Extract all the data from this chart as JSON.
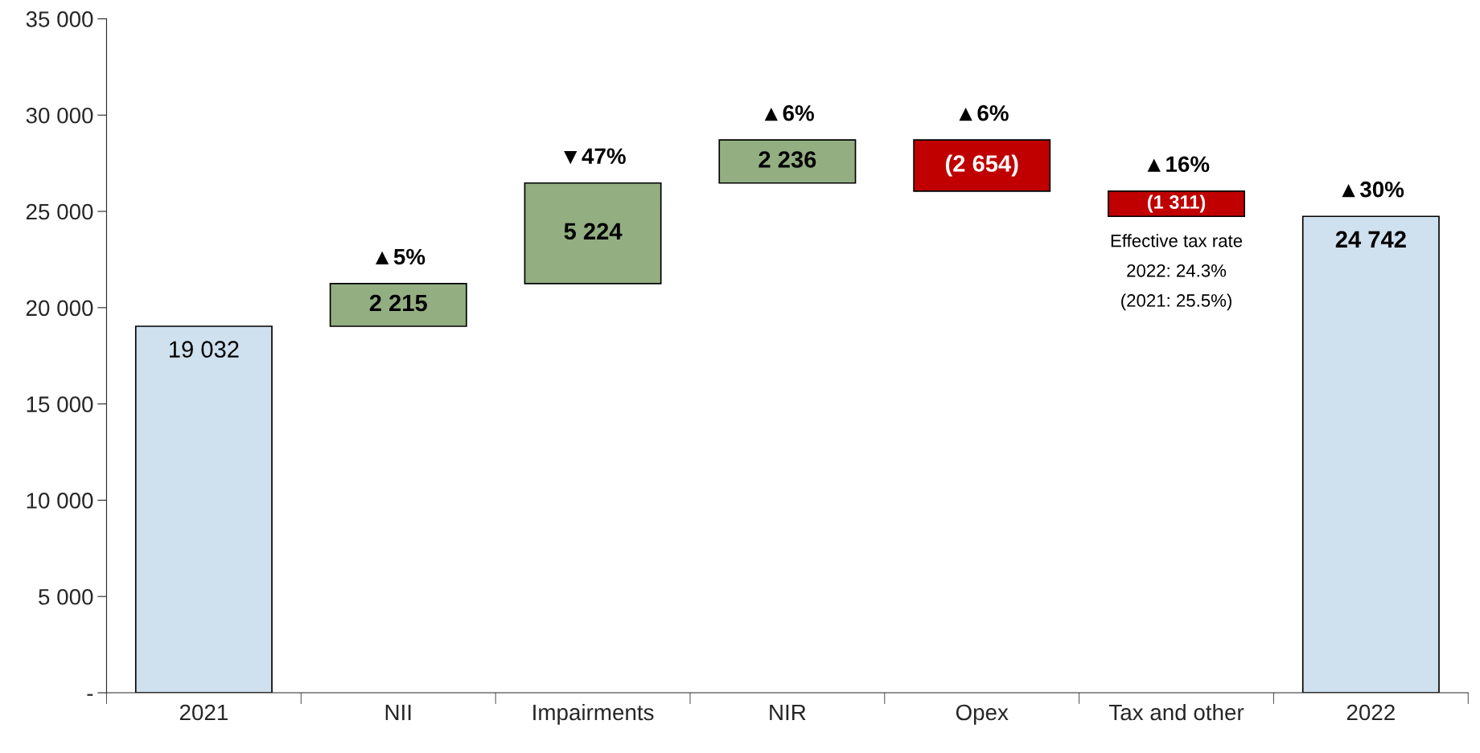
{
  "chart_data": {
    "type": "bar",
    "categories": [
      "2021",
      "NII",
      "Impairments",
      "NIR",
      "Opex",
      "Tax and other",
      "2022"
    ],
    "values": [
      19032,
      2215,
      5224,
      2236,
      -2654,
      -1311,
      24742
    ],
    "base": [
      0,
      19032,
      21247,
      26471,
      28707,
      26053,
      0
    ],
    "colors": [
      "#cfe0ee",
      "#93ae80",
      "#93ae80",
      "#93ae80",
      "#c00000",
      "#c00000",
      "#cfe0ee"
    ],
    "value_labels": [
      "19 032",
      "2 215",
      "5 224",
      "2 236",
      "(2 654)",
      "(1 311)",
      "24 742"
    ],
    "ylim": [
      0,
      35000
    ],
    "yticks": [
      {
        "value": 0,
        "label": "-"
      },
      {
        "value": 5000,
        "label": "5 000"
      },
      {
        "value": 10000,
        "label": "10 000"
      },
      {
        "value": 15000,
        "label": "15 000"
      },
      {
        "value": 20000,
        "label": "20 000"
      },
      {
        "value": 25000,
        "label": "25 000"
      },
      {
        "value": 30000,
        "label": "30 000"
      },
      {
        "value": 35000,
        "label": "35 000"
      }
    ],
    "grid": false,
    "annotations": [
      "▲5%",
      "▼47%",
      "▲6%",
      "▲6%",
      "▲16%",
      "▲30%",
      "Effective tax rate",
      "2022: 24.3%",
      "(2021: 25.5%)"
    ]
  }
}
